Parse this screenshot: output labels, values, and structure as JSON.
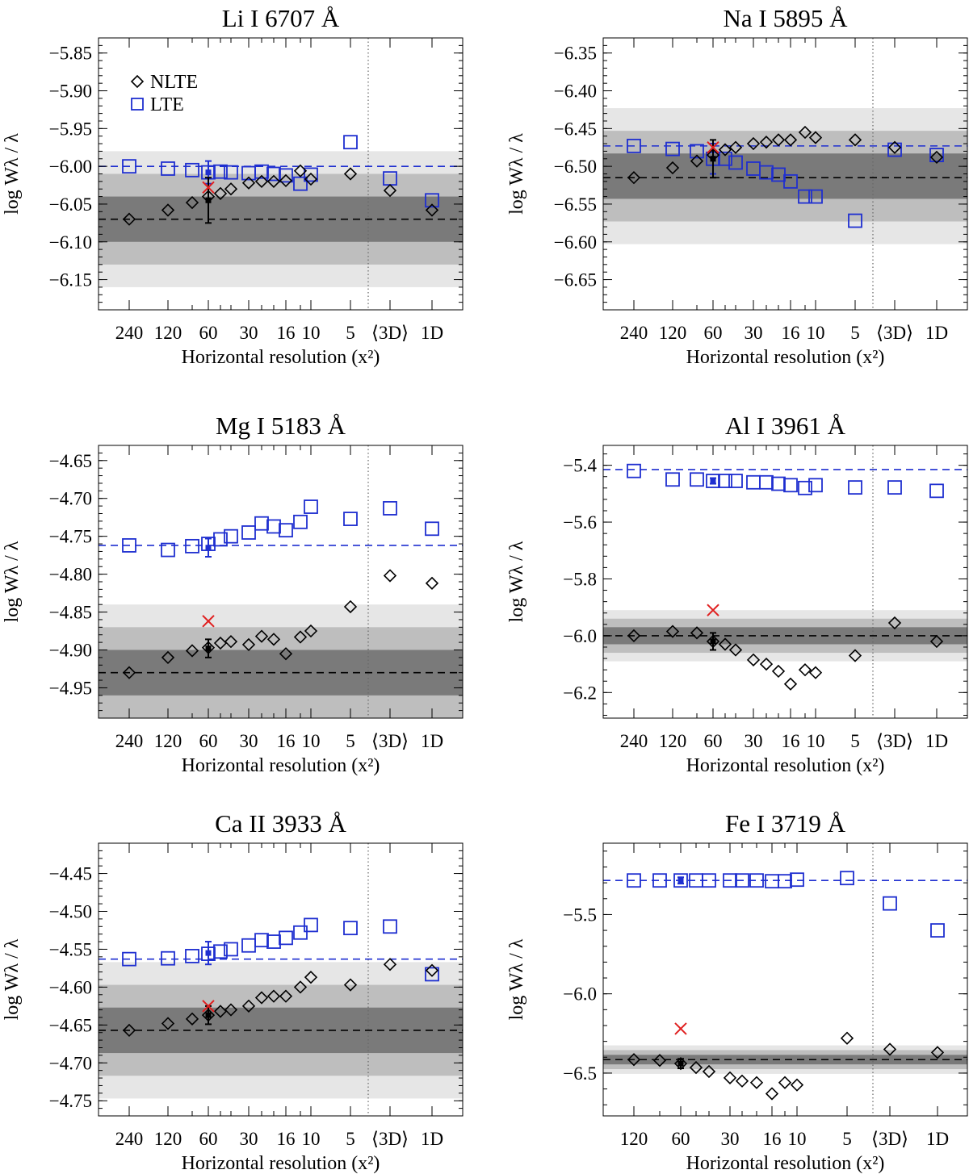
{
  "colors": {
    "nlte": "#000000",
    "lte": "#1f2fd0",
    "sun": "#e02020",
    "band_light": "#e6e6e6",
    "band_mid": "#bebebe",
    "band_dark": "#7a7a7a",
    "divider": "#666666"
  },
  "chart_data": [
    {
      "type": "scatter",
      "title": "Li I  6707 Å",
      "xlabel": "Horizontal resolution (x²)",
      "ylabel": "log Wλ / λ",
      "yticks": [
        -5.85,
        -5.9,
        -5.95,
        -6.0,
        -6.05,
        -6.1,
        -6.15
      ],
      "ytick_labels": [
        "−5.85",
        "−5.90",
        "−5.95",
        "−6.00",
        "−6.05",
        "−6.10",
        "−6.15"
      ],
      "ylim": [
        -6.19,
        -5.83
      ],
      "xtick_labels": [
        "240",
        "120",
        "60",
        "30",
        "16",
        "10",
        "5",
        "⟨3D⟩",
        "1D"
      ],
      "legend": {
        "entries": [
          "NLTE",
          "LTE"
        ]
      },
      "nlte_ref": -6.07,
      "lte_ref": -6.0,
      "bands": [
        [
          -6.16,
          -5.98
        ],
        [
          -6.13,
          -6.01
        ],
        [
          -6.1,
          -6.04
        ]
      ],
      "nlte": [
        [
          240,
          -6.07
        ],
        [
          120,
          -6.058
        ],
        [
          80,
          -6.048
        ],
        [
          60,
          -6.04
        ],
        [
          50,
          -6.036
        ],
        [
          40,
          -6.03
        ],
        [
          30,
          -6.022
        ],
        [
          25,
          -6.02
        ],
        [
          20,
          -6.02
        ],
        [
          16,
          -6.019
        ],
        [
          12,
          -6.006
        ],
        [
          10,
          -6.017
        ],
        [
          5,
          -6.01
        ],
        [
          "3D",
          -6.032
        ],
        [
          "1D",
          -6.058
        ]
      ],
      "lte": [
        [
          240,
          -6.0
        ],
        [
          120,
          -6.003
        ],
        [
          80,
          -6.005
        ],
        [
          60,
          -6.008
        ],
        [
          50,
          -6.007
        ],
        [
          40,
          -6.008
        ],
        [
          30,
          -6.009
        ],
        [
          25,
          -6.007
        ],
        [
          20,
          -6.01
        ],
        [
          16,
          -6.012
        ],
        [
          12,
          -6.023
        ],
        [
          10,
          -6.011
        ],
        [
          5,
          -5.968
        ],
        [
          "3D",
          -6.016
        ],
        [
          "1D",
          -6.045
        ]
      ],
      "nlte_err": [
        60,
        -6.045,
        0.03
      ],
      "lte_err": [
        60,
        -6.008,
        0.015
      ],
      "sun": [
        60,
        -6.028
      ]
    },
    {
      "type": "scatter",
      "title": "Na I  5895 Å",
      "xlabel": "Horizontal resolution (x²)",
      "ylabel": "log Wλ / λ",
      "yticks": [
        -6.35,
        -6.4,
        -6.45,
        -6.5,
        -6.55,
        -6.6,
        -6.65
      ],
      "ytick_labels": [
        "−6.35",
        "−6.40",
        "−6.45",
        "−6.50",
        "−6.55",
        "−6.60",
        "−6.65"
      ],
      "ylim": [
        -6.69,
        -6.33
      ],
      "xtick_labels": [
        "240",
        "120",
        "60",
        "30",
        "16",
        "10",
        "5",
        "⟨3D⟩",
        "1D"
      ],
      "nlte_ref": -6.515,
      "lte_ref": -6.473,
      "bands": [
        [
          -6.603,
          -6.423
        ],
        [
          -6.573,
          -6.453
        ],
        [
          -6.543,
          -6.483
        ]
      ],
      "nlte": [
        [
          240,
          -6.515
        ],
        [
          120,
          -6.502
        ],
        [
          80,
          -6.493
        ],
        [
          60,
          -6.485
        ],
        [
          50,
          -6.478
        ],
        [
          40,
          -6.475
        ],
        [
          30,
          -6.47
        ],
        [
          25,
          -6.468
        ],
        [
          20,
          -6.465
        ],
        [
          16,
          -6.465
        ],
        [
          12,
          -6.455
        ],
        [
          10,
          -6.462
        ],
        [
          5,
          -6.465
        ],
        [
          "3D",
          -6.475
        ],
        [
          "1D",
          -6.488
        ]
      ],
      "lte": [
        [
          240,
          -6.473
        ],
        [
          120,
          -6.477
        ],
        [
          80,
          -6.48
        ],
        [
          60,
          -6.49
        ],
        [
          50,
          -6.49
        ],
        [
          40,
          -6.495
        ],
        [
          30,
          -6.503
        ],
        [
          25,
          -6.508
        ],
        [
          20,
          -6.511
        ],
        [
          16,
          -6.52
        ],
        [
          12,
          -6.54
        ],
        [
          10,
          -6.54
        ],
        [
          5,
          -6.572
        ],
        [
          "3D",
          -6.478
        ],
        [
          "1D",
          -6.485
        ]
      ],
      "nlte_err": [
        60,
        -6.49,
        0.025
      ],
      "lte_err": [
        60,
        -6.49,
        0.02
      ],
      "sun": [
        60,
        -6.475
      ]
    },
    {
      "type": "scatter",
      "title": "Mg I  5183 Å",
      "xlabel": "Horizontal resolution (x²)",
      "ylabel": "log Wλ / λ",
      "yticks": [
        -4.65,
        -4.7,
        -4.75,
        -4.8,
        -4.85,
        -4.9,
        -4.95
      ],
      "ytick_labels": [
        "−4.65",
        "−4.70",
        "−4.75",
        "−4.80",
        "−4.85",
        "−4.90",
        "−4.95"
      ],
      "ylim": [
        -4.99,
        -4.63
      ],
      "xtick_labels": [
        "240",
        "120",
        "60",
        "30",
        "16",
        "10",
        "5",
        "⟨3D⟩",
        "1D"
      ],
      "nlte_ref": -4.93,
      "lte_ref": -4.762,
      "bands": [
        [
          -5.0,
          -4.84
        ],
        [
          -4.99,
          -4.87
        ],
        [
          -4.96,
          -4.9
        ]
      ],
      "nlte": [
        [
          240,
          -4.93
        ],
        [
          120,
          -4.91
        ],
        [
          80,
          -4.901
        ],
        [
          60,
          -4.897
        ],
        [
          50,
          -4.891
        ],
        [
          40,
          -4.889
        ],
        [
          30,
          -4.893
        ],
        [
          25,
          -4.882
        ],
        [
          20,
          -4.886
        ],
        [
          16,
          -4.905
        ],
        [
          12,
          -4.883
        ],
        [
          10,
          -4.875
        ],
        [
          5,
          -4.843
        ],
        [
          "3D",
          -4.802
        ],
        [
          "1D",
          -4.812
        ]
      ],
      "lte": [
        [
          240,
          -4.762
        ],
        [
          120,
          -4.768
        ],
        [
          80,
          -4.763
        ],
        [
          60,
          -4.76
        ],
        [
          50,
          -4.754
        ],
        [
          40,
          -4.75
        ],
        [
          30,
          -4.745
        ],
        [
          25,
          -4.733
        ],
        [
          20,
          -4.737
        ],
        [
          16,
          -4.742
        ],
        [
          12,
          -4.731
        ],
        [
          10,
          -4.711
        ],
        [
          5,
          -4.727
        ],
        [
          "3D",
          -4.713
        ],
        [
          "1D",
          -4.74
        ]
      ],
      "nlte_err": [
        60,
        -4.898,
        0.012
      ],
      "lte_err": [
        60,
        -4.765,
        0.012
      ],
      "sun": [
        60,
        -4.862
      ]
    },
    {
      "type": "scatter",
      "title": "Al I  3961 Å",
      "xlabel": "Horizontal resolution (x²)",
      "ylabel": "log Wλ / λ",
      "yticks": [
        -5.4,
        -5.6,
        -5.8,
        -6.0,
        -6.2
      ],
      "ytick_labels": [
        "−5.4",
        "−5.6",
        "−5.8",
        "−6.0",
        "−6.2"
      ],
      "ylim": [
        -6.29,
        -5.33
      ],
      "xtick_labels": [
        "240",
        "120",
        "60",
        "30",
        "16",
        "10",
        "5",
        "⟨3D⟩",
        "1D"
      ],
      "nlte_ref": -6.0,
      "lte_ref": -5.415,
      "bands": [
        [
          -6.09,
          -5.91
        ],
        [
          -6.06,
          -5.94
        ],
        [
          -6.03,
          -5.97
        ]
      ],
      "nlte": [
        [
          240,
          -6.0
        ],
        [
          120,
          -5.985
        ],
        [
          80,
          -5.99
        ],
        [
          60,
          -6.02
        ],
        [
          50,
          -6.03
        ],
        [
          40,
          -6.05
        ],
        [
          30,
          -6.085
        ],
        [
          25,
          -6.1
        ],
        [
          20,
          -6.125
        ],
        [
          16,
          -6.17
        ],
        [
          12,
          -6.12
        ],
        [
          10,
          -6.13
        ],
        [
          5,
          -6.07
        ],
        [
          "3D",
          -5.955
        ],
        [
          "1D",
          -6.02
        ]
      ],
      "lte": [
        [
          240,
          -5.42
        ],
        [
          120,
          -5.45
        ],
        [
          80,
          -5.45
        ],
        [
          60,
          -5.455
        ],
        [
          50,
          -5.455
        ],
        [
          40,
          -5.455
        ],
        [
          30,
          -5.46
        ],
        [
          25,
          -5.46
        ],
        [
          20,
          -5.465
        ],
        [
          16,
          -5.47
        ],
        [
          12,
          -5.48
        ],
        [
          10,
          -5.47
        ],
        [
          5,
          -5.478
        ],
        [
          "3D",
          -5.478
        ],
        [
          "1D",
          -5.49
        ]
      ],
      "nlte_err": [
        60,
        -6.02,
        0.03
      ],
      "lte_err": [
        60,
        -5.455,
        0.01
      ],
      "sun": [
        60,
        -5.91
      ]
    },
    {
      "type": "scatter",
      "title": "Ca II  3933 Å",
      "xlabel": "Horizontal resolution (x²)",
      "ylabel": "log Wλ / λ",
      "yticks": [
        -4.45,
        -4.5,
        -4.55,
        -4.6,
        -4.65,
        -4.7,
        -4.75
      ],
      "ytick_labels": [
        "−4.45",
        "−4.50",
        "−4.55",
        "−4.60",
        "−4.65",
        "−4.70",
        "−4.75"
      ],
      "ylim": [
        -4.77,
        -4.41
      ],
      "xtick_labels": [
        "240",
        "120",
        "60",
        "30",
        "16",
        "10",
        "5",
        "⟨3D⟩",
        "1D"
      ],
      "nlte_ref": -4.657,
      "lte_ref": -4.563,
      "bands": [
        [
          -4.747,
          -4.567
        ],
        [
          -4.717,
          -4.597
        ],
        [
          -4.687,
          -4.627
        ]
      ],
      "nlte": [
        [
          240,
          -4.657
        ],
        [
          120,
          -4.648
        ],
        [
          80,
          -4.642
        ],
        [
          60,
          -4.637
        ],
        [
          50,
          -4.632
        ],
        [
          40,
          -4.63
        ],
        [
          30,
          -4.625
        ],
        [
          25,
          -4.614
        ],
        [
          20,
          -4.612
        ],
        [
          16,
          -4.612
        ],
        [
          12,
          -4.6
        ],
        [
          10,
          -4.587
        ],
        [
          5,
          -4.597
        ],
        [
          "3D",
          -4.57
        ],
        [
          "1D",
          -4.578
        ]
      ],
      "lte": [
        [
          240,
          -4.563
        ],
        [
          120,
          -4.562
        ],
        [
          80,
          -4.559
        ],
        [
          60,
          -4.556
        ],
        [
          50,
          -4.553
        ],
        [
          40,
          -4.55
        ],
        [
          30,
          -4.545
        ],
        [
          25,
          -4.538
        ],
        [
          20,
          -4.54
        ],
        [
          16,
          -4.535
        ],
        [
          12,
          -4.528
        ],
        [
          10,
          -4.518
        ],
        [
          5,
          -4.522
        ],
        [
          "3D",
          -4.52
        ],
        [
          "1D",
          -4.583
        ]
      ],
      "nlte_err": [
        60,
        -4.637,
        0.012
      ],
      "lte_err": [
        60,
        -4.555,
        0.015
      ],
      "sun": [
        60,
        -4.625
      ]
    },
    {
      "type": "scatter",
      "title": "Fe I  3719 Å",
      "xlabel": "Horizontal resolution (x²)",
      "ylabel": "log Wλ / λ",
      "yticks": [
        -5.5,
        -6.0,
        -6.5
      ],
      "ytick_labels": [
        "−5.5",
        "−6.0",
        "−6.5"
      ],
      "ylim": [
        -6.77,
        -5.05
      ],
      "xtick_labels": [
        "120",
        "60",
        "30",
        "16",
        "10",
        "5",
        "⟨3D⟩",
        "1D"
      ],
      "nlte_ref": -6.415,
      "lte_ref": -5.285,
      "bands": [
        [
          -6.505,
          -6.325
        ],
        [
          -6.475,
          -6.355
        ],
        [
          -6.445,
          -6.385
        ]
      ],
      "nlte": [
        [
          120,
          -6.415
        ],
        [
          80,
          -6.42
        ],
        [
          60,
          -6.44
        ],
        [
          50,
          -6.465
        ],
        [
          40,
          -6.49
        ],
        [
          30,
          -6.53
        ],
        [
          25,
          -6.55
        ],
        [
          20,
          -6.56
        ],
        [
          16,
          -6.63
        ],
        [
          12,
          -6.56
        ],
        [
          10,
          -6.575
        ],
        [
          5,
          -6.28
        ],
        [
          "3D",
          -6.35
        ],
        [
          "1D",
          -6.37
        ]
      ],
      "lte": [
        [
          120,
          -5.285
        ],
        [
          80,
          -5.285
        ],
        [
          60,
          -5.285
        ],
        [
          50,
          -5.285
        ],
        [
          40,
          -5.285
        ],
        [
          30,
          -5.285
        ],
        [
          25,
          -5.285
        ],
        [
          20,
          -5.285
        ],
        [
          16,
          -5.29
        ],
        [
          12,
          -5.29
        ],
        [
          10,
          -5.28
        ],
        [
          5,
          -5.27
        ],
        [
          "3D",
          -5.43
        ],
        [
          "1D",
          -5.6
        ]
      ],
      "nlte_err": [
        60,
        -6.44,
        0.03
      ],
      "lte_err": [
        60,
        -5.285,
        0.02
      ],
      "sun": [
        60,
        -6.22
      ]
    }
  ]
}
